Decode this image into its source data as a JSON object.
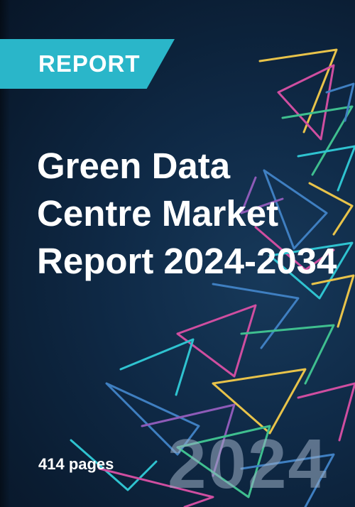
{
  "cover": {
    "badge_label": "REPORT",
    "title": "Green Data Centre Market Report 2024-2034",
    "pages_label": "414 pages",
    "year_watermark": "2024"
  },
  "colors": {
    "background": "#0f2a47",
    "badge": "#2ab6c9",
    "lines": [
      "#e8c34a",
      "#cf4ea0",
      "#2fc3d0",
      "#3f7fc1",
      "#3fbf8f",
      "#8e5bb8"
    ]
  }
}
